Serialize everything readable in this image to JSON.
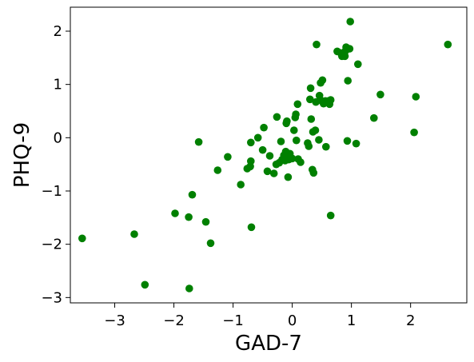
{
  "chart_data": {
    "type": "scatter",
    "title": "",
    "xlabel": "GAD-7",
    "ylabel": "PHQ-9",
    "xlim": [
      -3.75,
      2.95
    ],
    "ylim": [
      -3.1,
      2.45
    ],
    "xticks": [
      -3,
      -2,
      -1,
      0,
      1,
      2
    ],
    "yticks": [
      -3,
      -2,
      -1,
      0,
      1,
      2
    ],
    "xtick_labels": [
      "−3",
      "−2",
      "−1",
      "0",
      "1",
      "2"
    ],
    "ytick_labels": [
      "−3",
      "−2",
      "−1",
      "0",
      "1",
      "2"
    ],
    "grid": false,
    "legend": "none",
    "marker_color": "#008000",
    "series": [
      {
        "points": [
          {
            "x": -3.55,
            "y": -1.89
          },
          {
            "x": -2.67,
            "y": -1.81
          },
          {
            "x": -2.49,
            "y": -2.76
          },
          {
            "x": -1.98,
            "y": -1.42
          },
          {
            "x": -1.74,
            "y": -2.83
          },
          {
            "x": -1.75,
            "y": -1.49
          },
          {
            "x": -1.69,
            "y": -1.07
          },
          {
            "x": -1.58,
            "y": -0.08
          },
          {
            "x": -1.46,
            "y": -1.58
          },
          {
            "x": -1.38,
            "y": -1.98
          },
          {
            "x": -1.26,
            "y": -0.61
          },
          {
            "x": -1.09,
            "y": -0.36
          },
          {
            "x": -0.87,
            "y": -0.88
          },
          {
            "x": -0.76,
            "y": -0.58
          },
          {
            "x": -0.71,
            "y": -0.54
          },
          {
            "x": -0.7,
            "y": -0.44
          },
          {
            "x": -0.7,
            "y": -0.09
          },
          {
            "x": -0.69,
            "y": -1.68
          },
          {
            "x": -0.58,
            "y": 0.0
          },
          {
            "x": -0.5,
            "y": -0.23
          },
          {
            "x": -0.48,
            "y": 0.19
          },
          {
            "x": -0.42,
            "y": -0.63
          },
          {
            "x": -0.38,
            "y": -0.34
          },
          {
            "x": -0.31,
            "y": -0.67
          },
          {
            "x": -0.27,
            "y": -0.5
          },
          {
            "x": -0.22,
            "y": -0.47
          },
          {
            "x": -0.26,
            "y": 0.39
          },
          {
            "x": -0.19,
            "y": -0.07
          },
          {
            "x": -0.17,
            "y": -0.41
          },
          {
            "x": -0.14,
            "y": -0.33
          },
          {
            "x": -0.12,
            "y": -0.43
          },
          {
            "x": -0.11,
            "y": -0.26
          },
          {
            "x": -0.1,
            "y": -0.36
          },
          {
            "x": -0.1,
            "y": 0.27
          },
          {
            "x": -0.09,
            "y": 0.31
          },
          {
            "x": -0.07,
            "y": -0.74
          },
          {
            "x": -0.06,
            "y": -0.41
          },
          {
            "x": -0.04,
            "y": -0.3
          },
          {
            "x": 0.0,
            "y": -0.39
          },
          {
            "x": 0.03,
            "y": 0.14
          },
          {
            "x": 0.05,
            "y": 0.38
          },
          {
            "x": 0.06,
            "y": 0.44
          },
          {
            "x": 0.07,
            "y": -0.05
          },
          {
            "x": 0.09,
            "y": 0.63
          },
          {
            "x": 0.1,
            "y": -0.4
          },
          {
            "x": 0.14,
            "y": -0.46
          },
          {
            "x": 0.26,
            "y": -0.1
          },
          {
            "x": 0.28,
            "y": -0.16
          },
          {
            "x": 0.3,
            "y": 0.72
          },
          {
            "x": 0.31,
            "y": 0.93
          },
          {
            "x": 0.32,
            "y": 0.35
          },
          {
            "x": 0.34,
            "y": -0.6
          },
          {
            "x": 0.35,
            "y": 0.11
          },
          {
            "x": 0.36,
            "y": -0.66
          },
          {
            "x": 0.39,
            "y": 0.14
          },
          {
            "x": 0.4,
            "y": 0.67
          },
          {
            "x": 0.41,
            "y": 1.75
          },
          {
            "x": 0.45,
            "y": -0.04
          },
          {
            "x": 0.46,
            "y": 0.79
          },
          {
            "x": 0.48,
            "y": 1.03
          },
          {
            "x": 0.5,
            "y": 0.69
          },
          {
            "x": 0.51,
            "y": 1.08
          },
          {
            "x": 0.53,
            "y": 0.64
          },
          {
            "x": 0.56,
            "y": 0.69
          },
          {
            "x": 0.57,
            "y": -0.17
          },
          {
            "x": 0.61,
            "y": 0.69
          },
          {
            "x": 0.63,
            "y": 0.63
          },
          {
            "x": 0.65,
            "y": 0.71
          },
          {
            "x": 0.65,
            "y": -1.46
          },
          {
            "x": 0.76,
            "y": 1.62
          },
          {
            "x": 0.82,
            "y": 1.59
          },
          {
            "x": 0.84,
            "y": 1.53
          },
          {
            "x": 0.87,
            "y": 1.56
          },
          {
            "x": 0.89,
            "y": 1.53
          },
          {
            "x": 0.9,
            "y": 1.63
          },
          {
            "x": 0.91,
            "y": 1.7
          },
          {
            "x": 0.93,
            "y": -0.06
          },
          {
            "x": 0.94,
            "y": 1.07
          },
          {
            "x": 0.97,
            "y": 1.67
          },
          {
            "x": 0.98,
            "y": 2.18
          },
          {
            "x": 1.08,
            "y": -0.11
          },
          {
            "x": 1.11,
            "y": 1.38
          },
          {
            "x": 1.38,
            "y": 0.37
          },
          {
            "x": 1.49,
            "y": 0.81
          },
          {
            "x": 2.06,
            "y": 0.1
          },
          {
            "x": 2.09,
            "y": 0.77
          },
          {
            "x": 2.63,
            "y": 1.75
          }
        ]
      }
    ]
  }
}
